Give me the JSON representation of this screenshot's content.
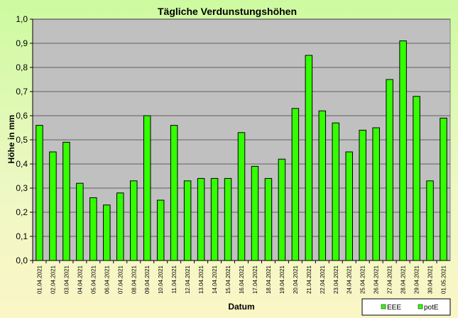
{
  "chart_data": {
    "type": "bar",
    "title": "Tägliche Verdunstungshöhen",
    "xlabel": "Datum",
    "ylabel": "Höhe in mm",
    "ylim": [
      0,
      1.0
    ],
    "yticks": [
      "0,0",
      "0,1",
      "0,2",
      "0,3",
      "0,4",
      "0,5",
      "0,6",
      "0,7",
      "0,8",
      "0,9",
      "1,0"
    ],
    "grid": true,
    "legend_position": "bottom-right",
    "categories": [
      "01.04.2021",
      "02.04.2021",
      "03.04.2021",
      "04.04.2021",
      "05.04.2021",
      "06.04.2021",
      "07.04.2021",
      "08.04.2021",
      "09.04.2021",
      "10.04.2021",
      "11.04.2021",
      "12.04.2021",
      "13.04.2021",
      "14.04.2021",
      "15.04.2021",
      "16.04.2021",
      "17.04.2021",
      "18.04.2021",
      "19.04.2021",
      "20.04.2021",
      "21.04.2021",
      "22.04.2021",
      "23.04.2021",
      "24.04.2021",
      "25.04.2021",
      "26.04.2021",
      "27.04.2021",
      "28.04.2021",
      "29.04.2021",
      "30.04.2021",
      "01.05.2021"
    ],
    "series": [
      {
        "name": "potE",
        "color": "#33ff00",
        "values": [
          0.56,
          0.45,
          0.49,
          0.32,
          0.26,
          0.23,
          0.28,
          0.33,
          0.6,
          0.25,
          0.56,
          0.33,
          0.34,
          0.34,
          0.34,
          0.53,
          0.39,
          0.34,
          0.42,
          0.63,
          0.85,
          0.62,
          0.57,
          0.45,
          0.54,
          0.55,
          0.75,
          0.91,
          0.68,
          0.33,
          0.59
        ]
      }
    ],
    "legend": [
      "EEE",
      "potE"
    ],
    "colors": {
      "plot_background": "#c0c0c0",
      "bar_fill": "#33ff00",
      "bar_stroke": "#000000"
    }
  }
}
